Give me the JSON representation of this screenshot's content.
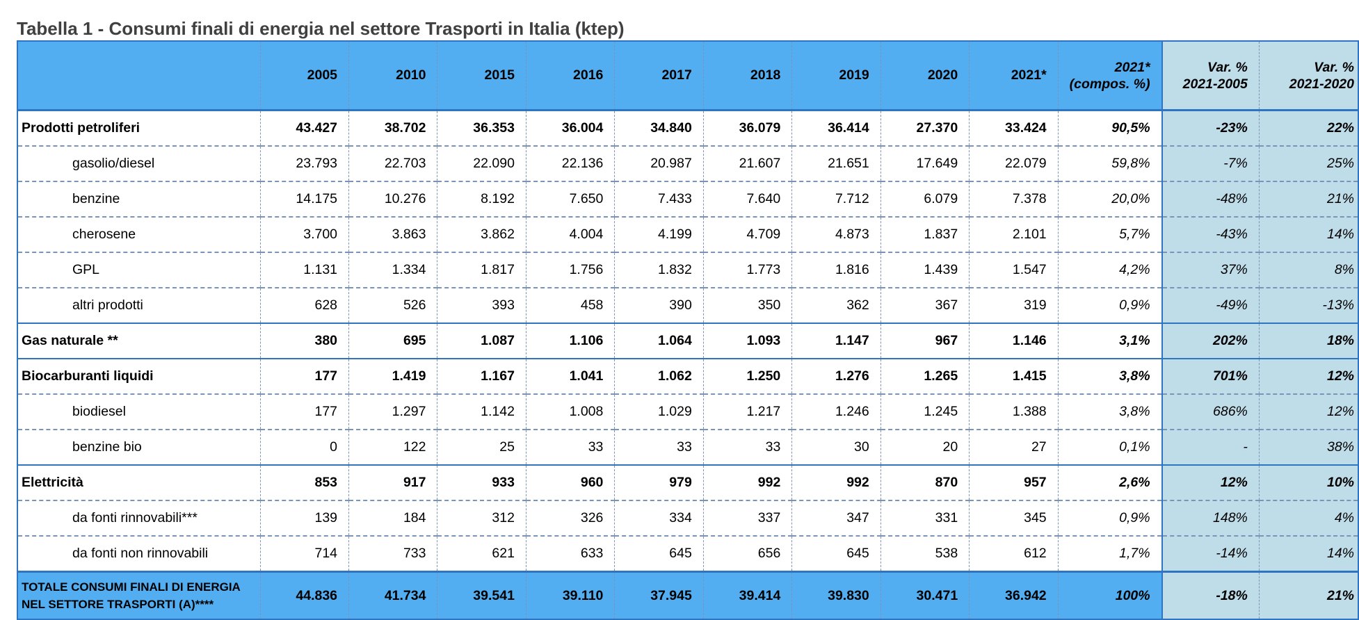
{
  "title": "Tabella 1 - Consumi finali di energia nel settore Trasporti in Italia (ktep)",
  "header": {
    "years": [
      "2005",
      "2010",
      "2015",
      "2016",
      "2017",
      "2018",
      "2019",
      "2020",
      "2021*"
    ],
    "compos_line1": "2021*",
    "compos_line2": "(compos. %)",
    "var1_line1": "Var. %",
    "var1_line2": "2021-2005",
    "var2_line1": "Var. %",
    "var2_line2": "2021-2020"
  },
  "rows": [
    {
      "label": "Prodotti petroliferi",
      "values": [
        "43.427",
        "38.702",
        "36.353",
        "36.004",
        "34.840",
        "36.079",
        "36.414",
        "27.370",
        "33.424"
      ],
      "compos": "90,5%",
      "var1": "-23%",
      "var2": "22%"
    },
    {
      "label": "gasolio/diesel",
      "values": [
        "23.793",
        "22.703",
        "22.090",
        "22.136",
        "20.987",
        "21.607",
        "21.651",
        "17.649",
        "22.079"
      ],
      "compos": "59,8%",
      "var1": "-7%",
      "var2": "25%"
    },
    {
      "label": "benzine",
      "values": [
        "14.175",
        "10.276",
        "8.192",
        "7.650",
        "7.433",
        "7.640",
        "7.712",
        "6.079",
        "7.378"
      ],
      "compos": "20,0%",
      "var1": "-48%",
      "var2": "21%"
    },
    {
      "label": "cherosene",
      "values": [
        "3.700",
        "3.863",
        "3.862",
        "4.004",
        "4.199",
        "4.709",
        "4.873",
        "1.837",
        "2.101"
      ],
      "compos": "5,7%",
      "var1": "-43%",
      "var2": "14%"
    },
    {
      "label": "GPL",
      "values": [
        "1.131",
        "1.334",
        "1.817",
        "1.756",
        "1.832",
        "1.773",
        "1.816",
        "1.439",
        "1.547"
      ],
      "compos": "4,2%",
      "var1": "37%",
      "var2": "8%"
    },
    {
      "label": "altri prodotti",
      "values": [
        "628",
        "526",
        "393",
        "458",
        "390",
        "350",
        "362",
        "367",
        "319"
      ],
      "compos": "0,9%",
      "var1": "-49%",
      "var2": "-13%"
    },
    {
      "label": "Gas naturale **",
      "values": [
        "380",
        "695",
        "1.087",
        "1.106",
        "1.064",
        "1.093",
        "1.147",
        "967",
        "1.146"
      ],
      "compos": "3,1%",
      "var1": "202%",
      "var2": "18%"
    },
    {
      "label": "Biocarburanti liquidi",
      "values": [
        "177",
        "1.419",
        "1.167",
        "1.041",
        "1.062",
        "1.250",
        "1.276",
        "1.265",
        "1.415"
      ],
      "compos": "3,8%",
      "var1": "701%",
      "var2": "12%"
    },
    {
      "label": "biodiesel",
      "values": [
        "177",
        "1.297",
        "1.142",
        "1.008",
        "1.029",
        "1.217",
        "1.246",
        "1.245",
        "1.388"
      ],
      "compos": "3,8%",
      "var1": "686%",
      "var2": "12%"
    },
    {
      "label": "benzine bio",
      "values": [
        "0",
        "122",
        "25",
        "33",
        "33",
        "33",
        "30",
        "20",
        "27"
      ],
      "compos": "0,1%",
      "var1": "-",
      "var2": "38%"
    },
    {
      "label": "Elettricità",
      "values": [
        "853",
        "917",
        "933",
        "960",
        "979",
        "992",
        "992",
        "870",
        "957"
      ],
      "compos": "2,6%",
      "var1": "12%",
      "var2": "10%"
    },
    {
      "label": "da fonti rinnovabili***",
      "values": [
        "139",
        "184",
        "312",
        "326",
        "334",
        "337",
        "347",
        "331",
        "345"
      ],
      "compos": "0,9%",
      "var1": "148%",
      "var2": "4%"
    },
    {
      "label": "da fonti non rinnovabili",
      "values": [
        "714",
        "733",
        "621",
        "633",
        "645",
        "656",
        "645",
        "538",
        "612"
      ],
      "compos": "1,7%",
      "var1": "-14%",
      "var2": "14%"
    }
  ],
  "total": {
    "label_line1": "TOTALE CONSUMI FINALI DI ENERGIA",
    "label_line2": "NEL SETTORE TRASPORTI (A)****",
    "values": [
      "44.836",
      "41.734",
      "39.541",
      "39.110",
      "37.945",
      "39.414",
      "39.830",
      "30.471",
      "36.942"
    ],
    "compos": "100%",
    "var1": "-18%",
    "var2": "21%"
  }
}
